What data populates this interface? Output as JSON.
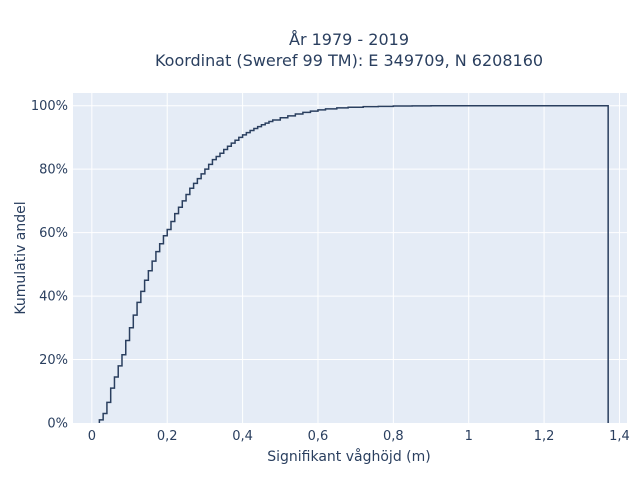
{
  "chart_data": {
    "type": "line",
    "title": "År 1979 - 2019",
    "subtitle": "Koordinat (Sweref 99 TM): E 349709, N 6208160",
    "xlabel": "Signifikant våghöjd (m)",
    "ylabel": "Kumulativ andel",
    "xlim": [
      -0.05,
      1.42
    ],
    "ylim": [
      0,
      1.04
    ],
    "xticks": [
      0,
      0.2,
      0.4,
      0.6,
      0.8,
      1,
      1.2,
      1.4
    ],
    "xtick_labels": [
      "0",
      "0,2",
      "0,4",
      "0,6",
      "0,8",
      "1",
      "1,2",
      "1,4"
    ],
    "yticks": [
      0,
      0.2,
      0.4,
      0.6,
      0.8,
      1.0
    ],
    "ytick_labels": [
      "0%",
      "20%",
      "40%",
      "60%",
      "80%",
      "100%"
    ],
    "grid": true,
    "step": true,
    "colors": {
      "plot_bg": "#e5ecf6",
      "line": "#2a3f5f",
      "grid": "#ffffff"
    },
    "series": [
      {
        "x": [
          0.02,
          0.03,
          0.04,
          0.05,
          0.06,
          0.07,
          0.08,
          0.09,
          0.1,
          0.11,
          0.12,
          0.13,
          0.14,
          0.15,
          0.16,
          0.17,
          0.18,
          0.19,
          0.2,
          0.21,
          0.22,
          0.23,
          0.24,
          0.25,
          0.26,
          0.27,
          0.28,
          0.29,
          0.3,
          0.31,
          0.32,
          0.33,
          0.34,
          0.35,
          0.36,
          0.37,
          0.38,
          0.39,
          0.4,
          0.41,
          0.42,
          0.43,
          0.44,
          0.45,
          0.46,
          0.47,
          0.48,
          0.5,
          0.52,
          0.54,
          0.56,
          0.58,
          0.6,
          0.62,
          0.65,
          0.68,
          0.72,
          0.76,
          0.8,
          0.85,
          0.9,
          1.0,
          1.1,
          1.2,
          1.37
        ],
        "y": [
          0.01,
          0.03,
          0.065,
          0.11,
          0.145,
          0.18,
          0.215,
          0.26,
          0.3,
          0.34,
          0.38,
          0.415,
          0.45,
          0.48,
          0.51,
          0.54,
          0.565,
          0.59,
          0.61,
          0.635,
          0.66,
          0.68,
          0.7,
          0.72,
          0.74,
          0.755,
          0.77,
          0.785,
          0.8,
          0.815,
          0.83,
          0.84,
          0.85,
          0.862,
          0.872,
          0.882,
          0.891,
          0.9,
          0.908,
          0.915,
          0.922,
          0.928,
          0.934,
          0.94,
          0.945,
          0.95,
          0.955,
          0.962,
          0.968,
          0.974,
          0.979,
          0.983,
          0.987,
          0.99,
          0.993,
          0.995,
          0.997,
          0.998,
          0.999,
          0.9995,
          1.0,
          1.0,
          1.0,
          1.0,
          1.0
        ]
      }
    ]
  }
}
